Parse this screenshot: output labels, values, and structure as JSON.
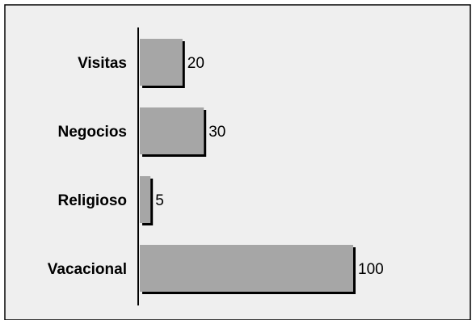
{
  "chart_data": {
    "type": "bar",
    "orientation": "horizontal",
    "categories": [
      "Visitas",
      "Negocios",
      "Religioso",
      "Vacacional"
    ],
    "values": [
      20,
      30,
      5,
      100
    ],
    "data_labels": [
      "20",
      "30",
      "5",
      "100"
    ],
    "title": "",
    "xlabel": "",
    "ylabel": "",
    "xlim": [
      0,
      100
    ],
    "grid": false,
    "legend": "none"
  },
  "colors": {
    "plot_background": "#efefef",
    "bar_fill": "#a6a6a6",
    "bar_shadow": "#000000",
    "frame": "#000000"
  }
}
